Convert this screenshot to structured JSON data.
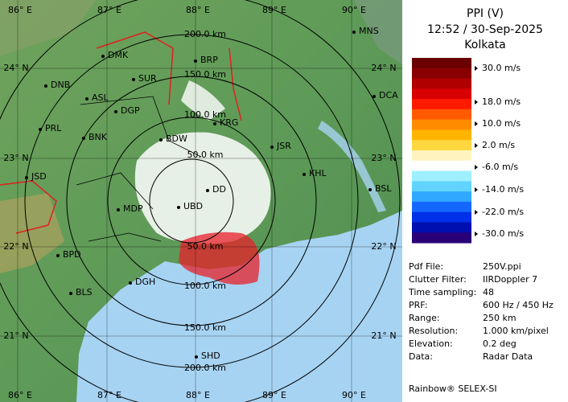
{
  "map": {
    "lon_labels_top": [
      "86° E",
      "87° E",
      "88° E",
      "89° E",
      "90° E"
    ],
    "lon_labels_bottom": [
      "86° E",
      "87° E",
      "88° E",
      "89° E",
      "90° E"
    ],
    "lat_labels_left": [
      "24° N",
      "23° N",
      "22° N",
      "21° N"
    ],
    "lat_labels_right": [
      "24° N",
      "23° N",
      "22° N",
      "21° N"
    ],
    "range_labels_top": [
      "200.0 km",
      "150.0 km",
      "100.0 km",
      "50.0 km"
    ],
    "range_labels_bottom": [
      "50.0 km",
      "100.0 km",
      "150.0 km",
      "200.0 km"
    ],
    "stations": [
      "MNS",
      "DMK",
      "BRP",
      "DNB",
      "SUR",
      "ASL",
      "DGP",
      "DCA",
      "PRL",
      "BNK",
      "KRG",
      "BDW",
      "JSR",
      "JSD",
      "KHL",
      "DD",
      "BSL",
      "MDP",
      "UBD",
      "BPD",
      "DGH",
      "BLS",
      "SHD"
    ]
  },
  "panel": {
    "title": "PPI (V)",
    "time": "12:52 / 30-Sep-2025",
    "site": "Kolkata",
    "scale_labels": [
      "30.0 m/s",
      "18.0 m/s",
      "10.0 m/s",
      "2.0 m/s",
      "-6.0 m/s",
      "-14.0 m/s",
      "-22.0 m/s",
      "-30.0 m/s"
    ],
    "info": [
      [
        "Pdf File:",
        "250V.ppi"
      ],
      [
        "Clutter Filter:",
        "IIRDoppler 7"
      ],
      [
        "Time sampling:",
        "48"
      ],
      [
        "PRF:",
        "600 Hz / 450 Hz"
      ],
      [
        "Range:",
        "250 km"
      ],
      [
        "Resolution:",
        "1.000 km/pixel"
      ],
      [
        "Elevation:",
        "0.2 deg"
      ],
      [
        "Data:",
        "Radar Data"
      ]
    ],
    "credit": "Rainbow® SELEX-SI"
  }
}
